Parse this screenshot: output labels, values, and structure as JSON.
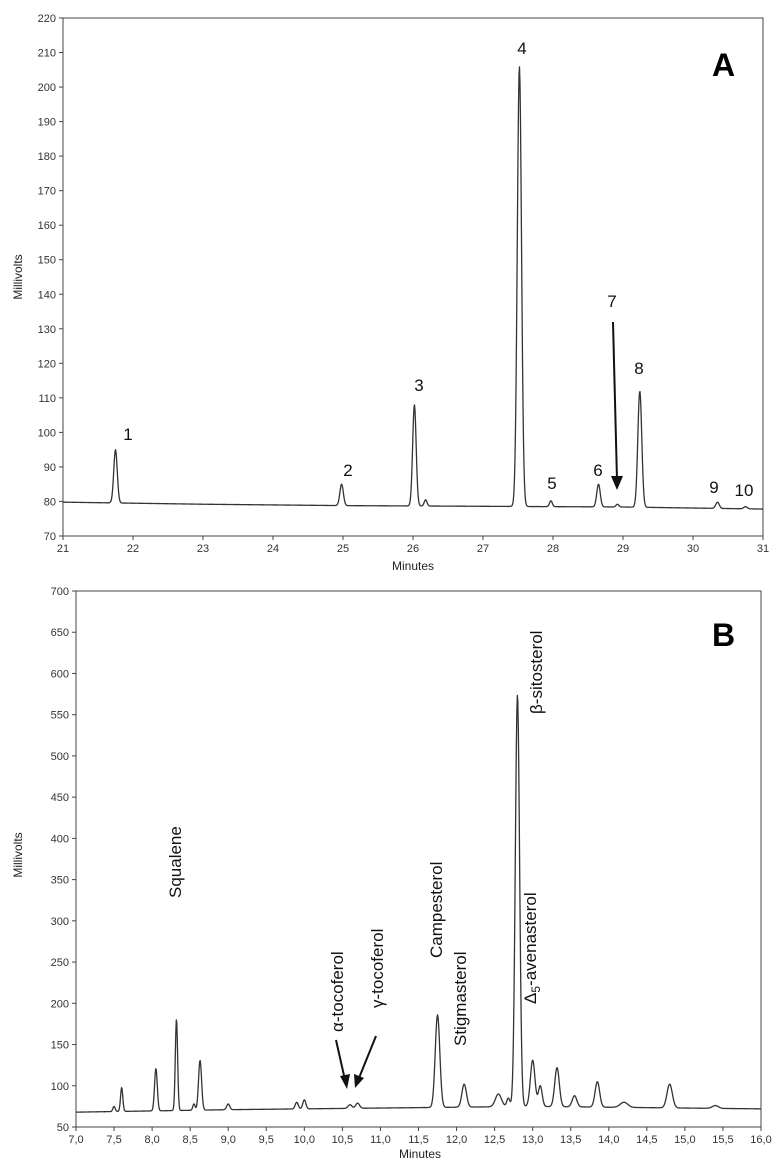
{
  "chart_data": [
    {
      "type": "line",
      "panel_label": "A",
      "xlabel": "Minutes",
      "ylabel": "Millivolts",
      "xlim": [
        21,
        31
      ],
      "ylim": [
        70,
        220
      ],
      "xticks": [
        21,
        22,
        23,
        24,
        25,
        26,
        27,
        28,
        29,
        30,
        31
      ],
      "xtick_labels": [
        "21",
        "22",
        "23",
        "24",
        "25",
        "26",
        "27",
        "28",
        "29",
        "30",
        "31"
      ],
      "yticks": [
        70,
        80,
        90,
        100,
        110,
        120,
        130,
        140,
        150,
        160,
        170,
        180,
        190,
        200,
        210,
        220
      ],
      "ytick_labels": [
        "70",
        "80",
        "90",
        "100",
        "110",
        "120",
        "130",
        "140",
        "150",
        "160",
        "170",
        "180",
        "190",
        "200",
        "210",
        "220"
      ],
      "baseline": [
        [
          21,
          79.8
        ],
        [
          23,
          79.2
        ],
        [
          25,
          78.8
        ],
        [
          27,
          78.6
        ],
        [
          29,
          78.4
        ],
        [
          31,
          77.8
        ]
      ],
      "peaks": [
        {
          "x": 21.75,
          "height": 95,
          "width": 0.025
        },
        {
          "x": 24.98,
          "height": 85,
          "width": 0.025
        },
        {
          "x": 26.02,
          "height": 108,
          "width": 0.025
        },
        {
          "x": 26.18,
          "height": 80.5,
          "width": 0.02
        },
        {
          "x": 27.52,
          "height": 206,
          "width": 0.03
        },
        {
          "x": 27.97,
          "height": 80.2,
          "width": 0.02
        },
        {
          "x": 28.65,
          "height": 85,
          "width": 0.025
        },
        {
          "x": 28.92,
          "height": 79.2,
          "width": 0.02
        },
        {
          "x": 29.24,
          "height": 112,
          "width": 0.028
        },
        {
          "x": 30.35,
          "height": 79.8,
          "width": 0.025
        },
        {
          "x": 30.75,
          "height": 78.5,
          "width": 0.025
        }
      ],
      "annotations": [
        {
          "text": "1",
          "x": 21.75,
          "y": 95
        },
        {
          "text": "2",
          "x": 24.98,
          "y": 85
        },
        {
          "text": "3",
          "x": 26.02,
          "y": 108
        },
        {
          "text": "4",
          "x": 27.52,
          "y": 206
        },
        {
          "text": "5",
          "x": 27.97,
          "y": 80.2
        },
        {
          "text": "6",
          "x": 28.65,
          "y": 85
        },
        {
          "text": "7",
          "x": 28.92,
          "y": 79.2,
          "arrow": true
        },
        {
          "text": "8",
          "x": 29.24,
          "y": 112
        },
        {
          "text": "9",
          "x": 30.35,
          "y": 79.8
        },
        {
          "text": "10",
          "x": 30.75,
          "y": 78.5
        }
      ]
    },
    {
      "type": "line",
      "panel_label": "B",
      "xlabel": "Minutes",
      "ylabel": "Millivolts",
      "xlim": [
        7.0,
        16.0
      ],
      "ylim": [
        50,
        700
      ],
      "xticks": [
        7.0,
        7.5,
        8.0,
        8.5,
        9.0,
        9.5,
        10.0,
        10.5,
        11.0,
        11.5,
        12.0,
        12.5,
        13.0,
        13.5,
        14.0,
        14.5,
        15.0,
        15.5,
        16.0
      ],
      "xtick_labels": [
        "7,0",
        "7,5",
        "8,0",
        "8,5",
        "9,0",
        "9,5",
        "10,0",
        "10,5",
        "11,0",
        "11,5",
        "12,0",
        "12,5",
        "13,0",
        "13,5",
        "14,0",
        "14,5",
        "15,0",
        "15,5",
        "16,0"
      ],
      "yticks": [
        50,
        100,
        150,
        200,
        250,
        300,
        350,
        400,
        450,
        500,
        550,
        600,
        650,
        700
      ],
      "ytick_labels": [
        "50",
        "100",
        "150",
        "200",
        "250",
        "300",
        "350",
        "400",
        "450",
        "500",
        "550",
        "600",
        "650",
        "700"
      ],
      "baseline": [
        [
          7.0,
          68
        ],
        [
          9.0,
          71
        ],
        [
          11.0,
          73
        ],
        [
          13.0,
          75
        ],
        [
          16.0,
          72
        ]
      ],
      "peaks": [
        {
          "x": 7.5,
          "height": 75,
          "width": 0.015
        },
        {
          "x": 7.6,
          "height": 98,
          "width": 0.015
        },
        {
          "x": 8.05,
          "height": 121,
          "width": 0.018
        },
        {
          "x": 8.32,
          "height": 181,
          "width": 0.015
        },
        {
          "x": 8.55,
          "height": 78,
          "width": 0.015
        },
        {
          "x": 8.63,
          "height": 131,
          "width": 0.02
        },
        {
          "x": 9.0,
          "height": 78,
          "width": 0.02
        },
        {
          "x": 9.9,
          "height": 80,
          "width": 0.02
        },
        {
          "x": 10.0,
          "height": 83,
          "width": 0.02
        },
        {
          "x": 10.6,
          "height": 77,
          "width": 0.025
        },
        {
          "x": 10.7,
          "height": 79,
          "width": 0.025
        },
        {
          "x": 11.75,
          "height": 186,
          "width": 0.03
        },
        {
          "x": 12.1,
          "height": 102,
          "width": 0.03
        },
        {
          "x": 12.55,
          "height": 90,
          "width": 0.04
        },
        {
          "x": 12.68,
          "height": 85,
          "width": 0.02
        },
        {
          "x": 12.8,
          "height": 574,
          "width": 0.028
        },
        {
          "x": 13.0,
          "height": 131,
          "width": 0.03
        },
        {
          "x": 13.1,
          "height": 100,
          "width": 0.025
        },
        {
          "x": 13.32,
          "height": 122,
          "width": 0.03
        },
        {
          "x": 13.55,
          "height": 88,
          "width": 0.03
        },
        {
          "x": 13.85,
          "height": 105,
          "width": 0.03
        },
        {
          "x": 14.2,
          "height": 80,
          "width": 0.05
        },
        {
          "x": 14.8,
          "height": 102,
          "width": 0.035
        },
        {
          "x": 15.4,
          "height": 76,
          "width": 0.04
        }
      ],
      "annotations": [
        {
          "text": "Squalene",
          "x": 8.32,
          "y": 181
        },
        {
          "text": "α-tocoferol",
          "x": 10.6,
          "y": 77,
          "arrow": true
        },
        {
          "text": "γ-tocoferol",
          "x": 10.7,
          "y": 79,
          "arrow": true
        },
        {
          "text": "Campesterol",
          "x": 11.75,
          "y": 186
        },
        {
          "text": "Stigmasterol",
          "x": 12.1,
          "y": 102
        },
        {
          "text": "β-sitosterol",
          "x": 12.8,
          "y": 574
        },
        {
          "text": "Δ5-avenasterol",
          "x": 13.0,
          "y": 131
        }
      ]
    }
  ]
}
